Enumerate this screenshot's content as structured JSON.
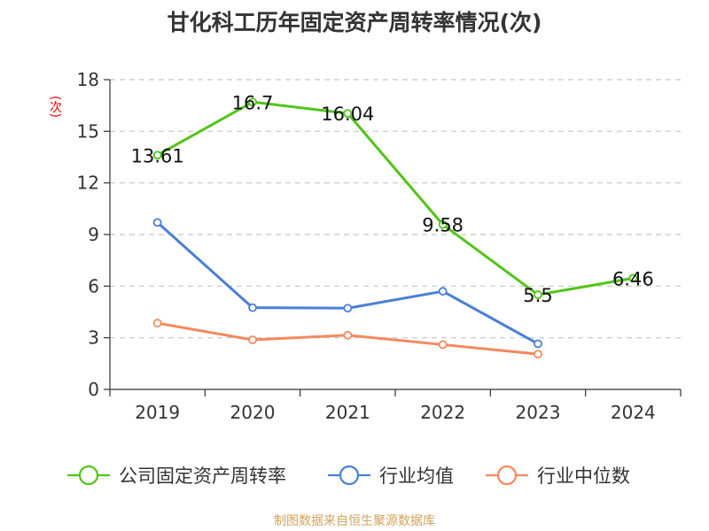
{
  "chart_data": {
    "type": "line",
    "title": "甘化科工历年固定资产周转率情况(次)",
    "ylabel": "(次)",
    "categories": [
      "2019",
      "2020",
      "2021",
      "2022",
      "2023",
      "2024"
    ],
    "ylim": [
      0,
      18
    ],
    "yticks": [
      0,
      3,
      6,
      9,
      12,
      15,
      18
    ],
    "grid": true,
    "legend_position": "bottom",
    "series": [
      {
        "name": "公司固定资产周转率",
        "color": "#52c41a",
        "values": [
          13.61,
          16.7,
          16.04,
          9.58,
          5.5,
          6.46
        ],
        "labels": [
          "13.61",
          "16.7",
          "16.04",
          "9.58",
          "5.5",
          "6.46"
        ]
      },
      {
        "name": "行业均值",
        "color": "#4a7fd6",
        "values": [
          9.7,
          4.75,
          4.72,
          5.7,
          2.65,
          null
        ]
      },
      {
        "name": "行业中位数",
        "color": "#f4895f",
        "values": [
          3.85,
          2.88,
          3.15,
          2.6,
          2.05,
          null
        ]
      }
    ]
  },
  "source": "制图数据来自恒生聚源数据库"
}
